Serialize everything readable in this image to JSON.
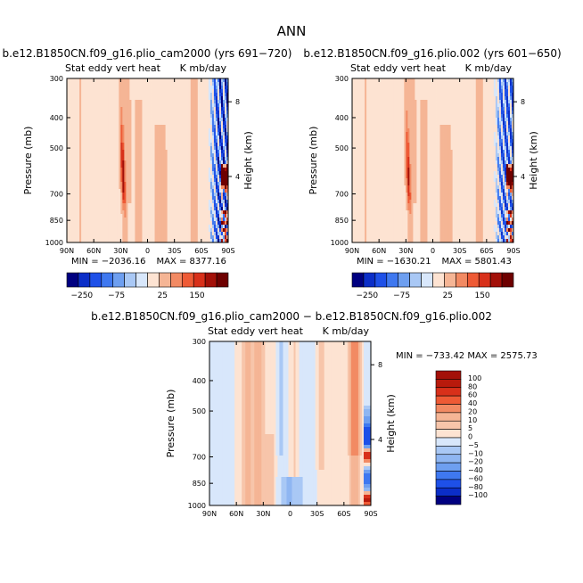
{
  "figure_title": "ANN",
  "colors": {
    "cmap12": [
      "#000080",
      "#0b2ec8",
      "#1e50e8",
      "#3f78f0",
      "#6e9ff0",
      "#a9c8f5",
      "#d8e7fb",
      "#fde3d2",
      "#f5b595",
      "#f28a63",
      "#ee5a35",
      "#d8301a",
      "#a31008",
      "#6e0000"
    ],
    "cmap_diff": [
      "#000080",
      "#0b2ec8",
      "#1e50e8",
      "#3f78f0",
      "#6e9ff0",
      "#8fb6f2",
      "#a9c8f5",
      "#d8e7fb",
      "#fde3d2",
      "#f7c5aa",
      "#f5b595",
      "#f28a63",
      "#ee5a35",
      "#d8301a",
      "#b81a0c",
      "#a31008"
    ]
  },
  "chart_data": [
    {
      "id": "panel1",
      "type": "heatmap",
      "title": "b.e12.B1850CN.f09_g16.plio_cam2000 (yrs 691−720)",
      "subtitle_left": "Stat eddy vert heat",
      "subtitle_right": "K mb/day",
      "ylabel": "Pressure (mb)",
      "ylabel_right": "Height (km)",
      "xticks": [
        "90N",
        "60N",
        "30N",
        "0",
        "30S",
        "60S",
        "90S"
      ],
      "yticks": [
        "300",
        "400",
        "500",
        "700",
        "850",
        "1000"
      ],
      "yticks_right": [
        "8",
        "4"
      ],
      "ylim": [
        1000,
        300
      ],
      "xlim": [
        90,
        -90
      ],
      "min_label": "MIN = −2036.16",
      "max_label": "MAX = 8377.16",
      "colorbar_ticks": [
        "−250",
        "−75",
        "25",
        "150"
      ],
      "colorbar_levels": [
        -250,
        -200,
        -150,
        -100,
        -75,
        -50,
        -25,
        0,
        25,
        50,
        75,
        100,
        150,
        200,
        250
      ]
    },
    {
      "id": "panel2",
      "type": "heatmap",
      "title": "b.e12.B1850CN.f09_g16.plio.002 (yrs 601−650)",
      "subtitle_left": "Stat eddy vert heat",
      "subtitle_right": "K mb/day",
      "ylabel": "Pressure (mb)",
      "ylabel_right": "Height (km)",
      "xticks": [
        "90N",
        "60N",
        "30N",
        "0",
        "30S",
        "60S",
        "90S"
      ],
      "yticks": [
        "300",
        "400",
        "500",
        "700",
        "850",
        "1000"
      ],
      "yticks_right": [
        "8",
        "4"
      ],
      "ylim": [
        1000,
        300
      ],
      "xlim": [
        90,
        -90
      ],
      "min_label": "MIN = −1630.21",
      "max_label": "MAX = 5801.43",
      "colorbar_ticks": [
        "−250",
        "−75",
        "25",
        "150"
      ],
      "colorbar_levels": [
        -250,
        -200,
        -150,
        -100,
        -75,
        -50,
        -25,
        0,
        25,
        50,
        75,
        100,
        150,
        200,
        250
      ]
    },
    {
      "id": "panel3",
      "type": "heatmap",
      "title": "b.e12.B1850CN.f09_g16.plio_cam2000 − b.e12.B1850CN.f09_g16.plio.002",
      "subtitle_left": "Stat eddy vert heat",
      "subtitle_right": "K mb/day",
      "ylabel": "Pressure (mb)",
      "ylabel_right": "Height (km)",
      "xticks": [
        "90N",
        "60N",
        "30N",
        "0",
        "30S",
        "60S",
        "90S"
      ],
      "yticks": [
        "300",
        "400",
        "500",
        "700",
        "850",
        "1000"
      ],
      "yticks_right": [
        "8",
        "4"
      ],
      "ylim": [
        1000,
        300
      ],
      "xlim": [
        90,
        -90
      ],
      "min_label": "MIN = −733.42",
      "max_label": "MAX = 2575.73",
      "colorbar_ticks": [
        "100",
        "80",
        "60",
        "40",
        "20",
        "10",
        "5",
        "0",
        "−5",
        "−10",
        "−20",
        "−40",
        "−60",
        "−80",
        "−100"
      ]
    }
  ]
}
